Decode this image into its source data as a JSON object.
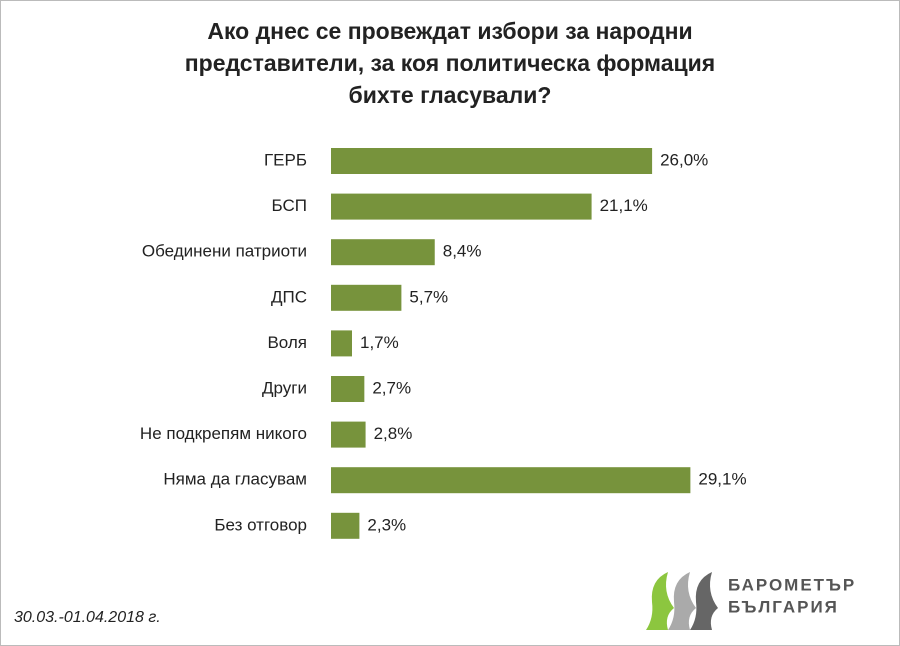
{
  "chart_data": {
    "type": "barh",
    "title": [
      "Ако днес се провеждат избори за народни",
      "представители, за коя политическа формация",
      "бихте гласували?"
    ],
    "categories": [
      "ГЕРБ",
      "БСП",
      "Обединени патриоти",
      "ДПС",
      "Воля",
      "Други",
      "Не подкрепям никого",
      "Няма да гласувам",
      "Без отговор"
    ],
    "values": [
      26.0,
      21.1,
      8.4,
      5.7,
      1.7,
      2.7,
      2.8,
      29.1,
      2.3
    ],
    "value_labels": [
      "26,0%",
      "21,1%",
      "8,4%",
      "5,7%",
      "1,7%",
      "2,7%",
      "2,8%",
      "29,1%",
      "2,3%"
    ],
    "color": "#77933c"
  },
  "footer": {
    "date": "30.03.-01.04.2018 г.",
    "logo": [
      "БАРОМЕТЪР",
      "БЪЛГАРИЯ"
    ]
  }
}
